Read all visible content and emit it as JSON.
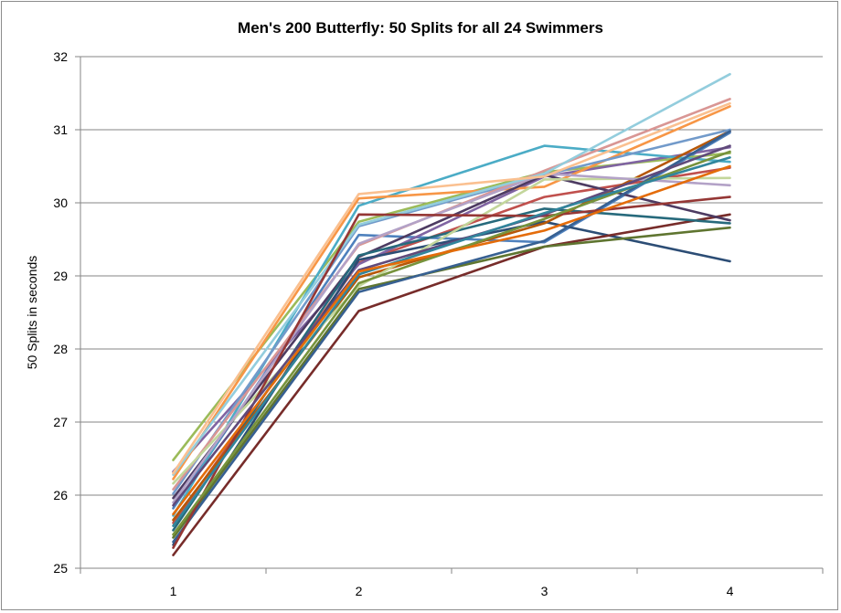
{
  "chart_data": {
    "type": "line",
    "title": "Men's 200 Butterfly: 50 Splits for all 24 Swimmers",
    "xlabel": "",
    "ylabel": "50 Splits in seconds",
    "x": [
      1,
      2,
      3,
      4
    ],
    "ylim": [
      25,
      32
    ],
    "yticks": [
      25,
      26,
      27,
      28,
      29,
      30,
      31,
      32
    ],
    "grid": "horizontal major gridlines",
    "legend": "none",
    "series": [
      {
        "color": "#4f81bd",
        "values": [
          25.82,
          29.56,
          29.46,
          30.96
        ]
      },
      {
        "color": "#c0504d",
        "values": [
          25.62,
          29.18,
          30.08,
          30.48
        ]
      },
      {
        "color": "#9bbb59",
        "values": [
          26.48,
          29.74,
          30.42,
          30.68
        ]
      },
      {
        "color": "#8064a2",
        "values": [
          26.32,
          29.16,
          30.36,
          30.76
        ]
      },
      {
        "color": "#4bacc6",
        "values": [
          25.72,
          29.96,
          30.78,
          30.56
        ]
      },
      {
        "color": "#f79646",
        "values": [
          26.22,
          30.06,
          30.22,
          31.32
        ]
      },
      {
        "color": "#2c4d75",
        "values": [
          25.32,
          29.22,
          29.74,
          29.2
        ]
      },
      {
        "color": "#772c2a",
        "values": [
          25.18,
          28.52,
          29.4,
          29.84
        ]
      },
      {
        "color": "#5f7530",
        "values": [
          25.42,
          28.82,
          29.4,
          29.66
        ]
      },
      {
        "color": "#4d3b62",
        "values": [
          25.96,
          29.26,
          30.38,
          29.76
        ]
      },
      {
        "color": "#276a7c",
        "values": [
          25.52,
          29.28,
          29.92,
          29.72
        ]
      },
      {
        "color": "#b65708",
        "values": [
          25.66,
          28.98,
          29.72,
          30.98
        ]
      },
      {
        "color": "#729aca",
        "values": [
          26.02,
          29.68,
          30.38,
          31.0
        ]
      },
      {
        "color": "#d99694",
        "values": [
          26.08,
          29.42,
          30.44,
          31.42
        ]
      },
      {
        "color": "#c3d69b",
        "values": [
          26.16,
          28.86,
          30.32,
          30.34
        ]
      },
      {
        "color": "#b3a2c7",
        "values": [
          25.9,
          29.44,
          30.4,
          30.24
        ]
      },
      {
        "color": "#93cddd",
        "values": [
          26.28,
          29.7,
          30.4,
          31.76
        ]
      },
      {
        "color": "#fac090",
        "values": [
          26.3,
          30.12,
          30.36,
          31.36
        ]
      },
      {
        "color": "#376092",
        "values": [
          25.36,
          28.78,
          29.48,
          30.98
        ]
      },
      {
        "color": "#953735",
        "values": [
          25.28,
          29.84,
          29.82,
          30.08
        ]
      },
      {
        "color": "#77933c",
        "values": [
          25.46,
          28.9,
          29.78,
          30.7
        ]
      },
      {
        "color": "#604a7b",
        "values": [
          25.86,
          29.08,
          29.84,
          30.78
        ]
      },
      {
        "color": "#31859c",
        "values": [
          25.58,
          29.02,
          29.86,
          30.62
        ]
      },
      {
        "color": "#e46c0a",
        "values": [
          25.74,
          29.06,
          29.62,
          30.5
        ]
      }
    ]
  }
}
